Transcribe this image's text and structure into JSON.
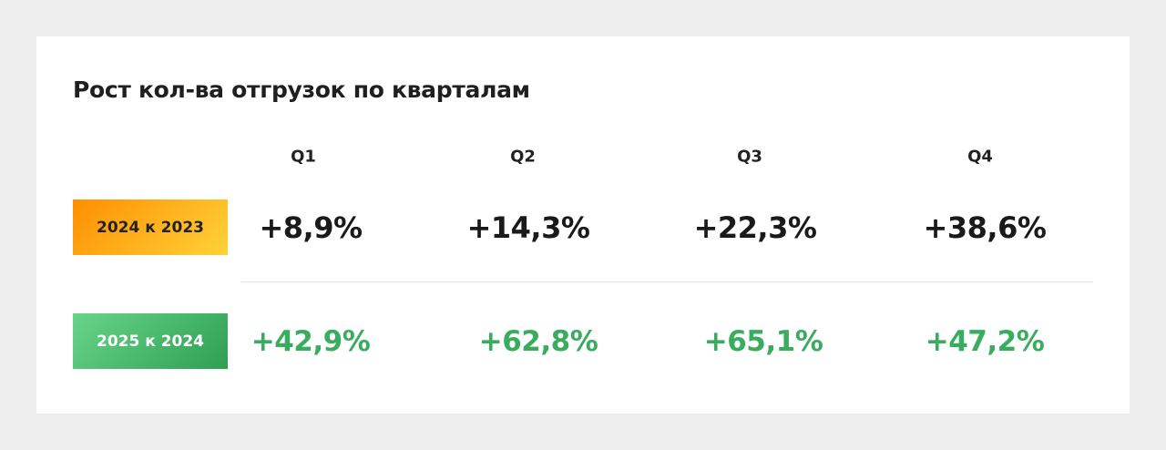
{
  "title": "Рост кол-ва отгрузок по кварталам",
  "table": {
    "columns": [
      "Q1",
      "Q2",
      "Q3",
      "Q4"
    ],
    "rows": [
      {
        "label": "2024 к 2023",
        "cells": [
          "+8,9%",
          "+14,3%",
          "+22,3%",
          "+38,6%"
        ]
      },
      {
        "label": "2025 к 2024",
        "cells": [
          "+42,9%",
          "+62,8%",
          "+65,1%",
          "+47,2%"
        ]
      }
    ]
  }
}
